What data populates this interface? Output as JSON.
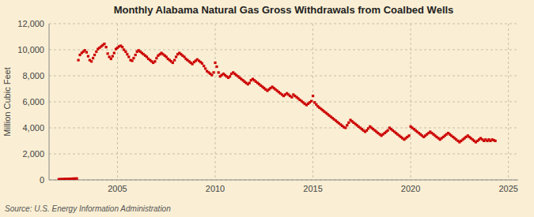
{
  "chart_data": {
    "type": "scatter",
    "title": "Monthly Alabama Natural Gas Gross Withdrawals from Coalbed Wells",
    "y_label": "Million Cubic Feet",
    "source": "Source: U.S. Energy Information Administration",
    "color": "#cc0000",
    "marker": "square",
    "grid": true,
    "xlim": [
      2001.5,
      2025.5
    ],
    "xticks": [
      2005,
      2010,
      2015,
      2020,
      2025
    ],
    "ylim": [
      0,
      12000
    ],
    "yticks": [
      0,
      {
        "value": 2000,
        "label": "2,000"
      },
      {
        "value": 4000,
        "label": "4,000"
      },
      {
        "value": 6000,
        "label": "6,000"
      },
      {
        "value": 8000,
        "label": "8,000"
      },
      {
        "value": 10000,
        "label": "10,000"
      },
      {
        "value": 12000,
        "label": "12,000"
      }
    ],
    "x": [
      2002.0,
      2002.08,
      2002.17,
      2002.25,
      2002.33,
      2002.42,
      2002.5,
      2002.58,
      2002.67,
      2002.75,
      2002.83,
      2002.92,
      2003.0,
      2003.08,
      2003.17,
      2003.25,
      2003.33,
      2003.42,
      2003.5,
      2003.58,
      2003.67,
      2003.75,
      2003.83,
      2003.92,
      2004.0,
      2004.08,
      2004.17,
      2004.25,
      2004.33,
      2004.42,
      2004.5,
      2004.58,
      2004.67,
      2004.75,
      2004.83,
      2004.92,
      2005.0,
      2005.08,
      2005.17,
      2005.25,
      2005.33,
      2005.42,
      2005.5,
      2005.58,
      2005.67,
      2005.75,
      2005.83,
      2005.92,
      2006.0,
      2006.08,
      2006.17,
      2006.25,
      2006.33,
      2006.42,
      2006.5,
      2006.58,
      2006.67,
      2006.75,
      2006.83,
      2006.92,
      2007.0,
      2007.08,
      2007.17,
      2007.25,
      2007.33,
      2007.42,
      2007.5,
      2007.58,
      2007.67,
      2007.75,
      2007.83,
      2007.92,
      2008.0,
      2008.08,
      2008.17,
      2008.25,
      2008.33,
      2008.42,
      2008.5,
      2008.58,
      2008.67,
      2008.75,
      2008.83,
      2008.92,
      2009.0,
      2009.08,
      2009.17,
      2009.25,
      2009.33,
      2009.42,
      2009.5,
      2009.58,
      2009.67,
      2009.75,
      2009.83,
      2009.92,
      2010.0,
      2010.08,
      2010.17,
      2010.25,
      2010.33,
      2010.42,
      2010.5,
      2010.58,
      2010.67,
      2010.75,
      2010.83,
      2010.92,
      2011.0,
      2011.08,
      2011.17,
      2011.25,
      2011.33,
      2011.42,
      2011.5,
      2011.58,
      2011.67,
      2011.75,
      2011.83,
      2011.92,
      2012.0,
      2012.08,
      2012.17,
      2012.25,
      2012.33,
      2012.42,
      2012.5,
      2012.58,
      2012.67,
      2012.75,
      2012.83,
      2012.92,
      2013.0,
      2013.08,
      2013.17,
      2013.25,
      2013.33,
      2013.42,
      2013.5,
      2013.58,
      2013.67,
      2013.75,
      2013.83,
      2013.92,
      2014.0,
      2014.08,
      2014.17,
      2014.25,
      2014.33,
      2014.42,
      2014.5,
      2014.58,
      2014.67,
      2014.75,
      2014.83,
      2014.92,
      2015.0,
      2015.08,
      2015.17,
      2015.25,
      2015.33,
      2015.42,
      2015.5,
      2015.58,
      2015.67,
      2015.75,
      2015.83,
      2015.92,
      2016.0,
      2016.08,
      2016.17,
      2016.25,
      2016.33,
      2016.42,
      2016.5,
      2016.58,
      2016.67,
      2016.75,
      2016.83,
      2016.92,
      2017.0,
      2017.08,
      2017.17,
      2017.25,
      2017.33,
      2017.42,
      2017.5,
      2017.58,
      2017.67,
      2017.75,
      2017.83,
      2017.92,
      2018.0,
      2018.08,
      2018.17,
      2018.25,
      2018.33,
      2018.42,
      2018.5,
      2018.58,
      2018.67,
      2018.75,
      2018.83,
      2018.92,
      2019.0,
      2019.08,
      2019.17,
      2019.25,
      2019.33,
      2019.42,
      2019.5,
      2019.58,
      2019.67,
      2019.75,
      2019.83,
      2019.92,
      2020.0,
      2020.08,
      2020.17,
      2020.25,
      2020.33,
      2020.42,
      2020.5,
      2020.58,
      2020.67,
      2020.75,
      2020.83,
      2020.92,
      2021.0,
      2021.08,
      2021.17,
      2021.25,
      2021.33,
      2021.42,
      2021.5,
      2021.58,
      2021.67,
      2021.75,
      2021.83,
      2021.92,
      2022.0,
      2022.08,
      2022.17,
      2022.25,
      2022.33,
      2022.42,
      2022.5,
      2022.58,
      2022.67,
      2022.75,
      2022.83,
      2022.92,
      2023.0,
      2023.08,
      2023.17,
      2023.25,
      2023.33,
      2023.42,
      2023.5,
      2023.58,
      2023.67,
      2023.75,
      2023.83,
      2023.92,
      2024.0,
      2024.08,
      2024.17,
      2024.25,
      2024.33
    ],
    "values": [
      50,
      55,
      60,
      65,
      70,
      75,
      80,
      85,
      90,
      95,
      100,
      105,
      9200,
      9600,
      9750,
      9850,
      9950,
      9800,
      9500,
      9200,
      9100,
      9350,
      9600,
      9850,
      10050,
      10150,
      10250,
      10350,
      10450,
      10200,
      9700,
      9450,
      9300,
      9500,
      9750,
      10050,
      10150,
      10250,
      10300,
      10200,
      10000,
      9850,
      9650,
      9450,
      9200,
      9150,
      9350,
      9600,
      9850,
      9950,
      9850,
      9750,
      9650,
      9550,
      9450,
      9300,
      9200,
      9100,
      9000,
      9100,
      9350,
      9550,
      9650,
      9750,
      9650,
      9550,
      9450,
      9300,
      9200,
      9100,
      9000,
      9200,
      9450,
      9650,
      9750,
      9650,
      9550,
      9450,
      9300,
      9200,
      9100,
      9000,
      8900,
      9050,
      9150,
      9250,
      9150,
      9050,
      8950,
      8750,
      8550,
      8350,
      8250,
      8150,
      8050,
      8250,
      9000,
      8700,
      8250,
      7950,
      8050,
      8150,
      8050,
      7950,
      7850,
      7950,
      8150,
      8250,
      8150,
      8050,
      7950,
      7850,
      7750,
      7650,
      7550,
      7450,
      7350,
      7450,
      7650,
      7750,
      7650,
      7550,
      7450,
      7350,
      7250,
      7150,
      7050,
      6950,
      6850,
      6950,
      7050,
      7150,
      7050,
      6950,
      6850,
      6750,
      6650,
      6550,
      6450,
      6550,
      6650,
      6550,
      6450,
      6350,
      6550,
      6450,
      6350,
      6250,
      6150,
      6050,
      5950,
      5850,
      5750,
      5850,
      5950,
      6050,
      6450,
      5950,
      5800,
      5650,
      5550,
      5450,
      5350,
      5250,
      5150,
      5050,
      4950,
      4850,
      4750,
      4650,
      4550,
      4450,
      4350,
      4250,
      4150,
      4050,
      4000,
      4200,
      4400,
      4600,
      4500,
      4400,
      4300,
      4200,
      4100,
      4000,
      3900,
      3800,
      3700,
      3800,
      3950,
      4100,
      4000,
      3900,
      3800,
      3700,
      3600,
      3500,
      3400,
      3500,
      3600,
      3700,
      3800,
      4000,
      3900,
      3800,
      3700,
      3600,
      3500,
      3400,
      3300,
      3200,
      3100,
      3200,
      3300,
      3400,
      4100,
      4000,
      3900,
      3800,
      3700,
      3600,
      3500,
      3400,
      3300,
      3400,
      3500,
      3600,
      3700,
      3600,
      3500,
      3400,
      3300,
      3200,
      3100,
      3200,
      3300,
      3400,
      3500,
      3600,
      3500,
      3400,
      3300,
      3200,
      3100,
      3000,
      2900,
      3000,
      3100,
      3200,
      3300,
      3400,
      3300,
      3200,
      3100,
      3000,
      2900,
      3000,
      3100,
      3200,
      3100,
      3000,
      3100,
      3000,
      3100,
      3000,
      3100,
      3050,
      3000
    ]
  }
}
